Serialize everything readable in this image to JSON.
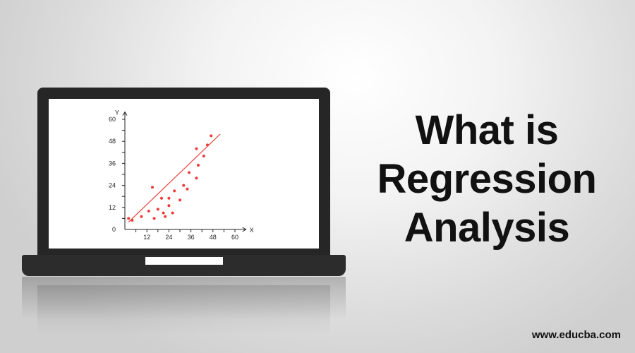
{
  "title": {
    "line1": "What is",
    "line2": "Regression",
    "line3": "Analysis"
  },
  "website": "www.educba.com",
  "chart_data": {
    "type": "scatter",
    "xlabel": "X",
    "ylabel": "Y",
    "xlim": [
      0,
      66
    ],
    "ylim": [
      0,
      64
    ],
    "x_ticks": [
      12,
      24,
      36,
      48,
      60
    ],
    "y_ticks": [
      0,
      12,
      24,
      36,
      48,
      60
    ],
    "points": [
      [
        2,
        6
      ],
      [
        4,
        5
      ],
      [
        9,
        7
      ],
      [
        13,
        10
      ],
      [
        15,
        23
      ],
      [
        16,
        6
      ],
      [
        18,
        11
      ],
      [
        20,
        17
      ],
      [
        21,
        9
      ],
      [
        22,
        7
      ],
      [
        24,
        13
      ],
      [
        24,
        17
      ],
      [
        26,
        9
      ],
      [
        27,
        21
      ],
      [
        30,
        16
      ],
      [
        32,
        24
      ],
      [
        34,
        22
      ],
      [
        35,
        31
      ],
      [
        39,
        28
      ],
      [
        39,
        44
      ],
      [
        40,
        35
      ],
      [
        43,
        40
      ],
      [
        45,
        46
      ],
      [
        47,
        51
      ]
    ],
    "regression_line": {
      "x": [
        2,
        52
      ],
      "y": [
        4,
        52
      ]
    },
    "colors": {
      "points": "#f03a3a",
      "line": "#e8423c",
      "axis": "#222222"
    }
  }
}
